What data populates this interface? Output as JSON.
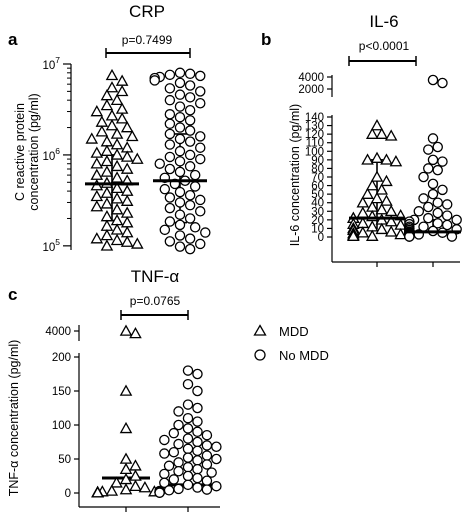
{
  "chart_data": [
    {
      "panel_label": "a",
      "type": "scatter",
      "title": "CRP",
      "ylabel_line1": "C reactive protein",
      "ylabel_line2": "concentration (pg/ml)",
      "yscale": "log",
      "ylim": [
        90000,
        10000000
      ],
      "yticks": [
        {
          "value": 100000,
          "base": "10",
          "exp": "5"
        },
        {
          "value": 1000000,
          "base": "10",
          "exp": "6"
        },
        {
          "value": 10000000,
          "base": "10",
          "exp": "7"
        }
      ],
      "p_value": "p=0.7499",
      "groups": [
        {
          "name": "MDD",
          "marker": "triangle",
          "median": 480000,
          "iqr": [
            190000,
            1000000
          ],
          "points": [
            7500000,
            6500000,
            5500000,
            5000000,
            4500000,
            4000000,
            3500000,
            3200000,
            3000000,
            2700000,
            2500000,
            2300000,
            2100000,
            2000000,
            1800000,
            1700000,
            1600000,
            1500000,
            1400000,
            1300000,
            1200000,
            1100000,
            1050000,
            1000000,
            950000,
            900000,
            850000,
            800000,
            750000,
            700000,
            650000,
            600000,
            560000,
            520000,
            490000,
            460000,
            430000,
            400000,
            380000,
            350000,
            330000,
            310000,
            290000,
            270000,
            250000,
            230000,
            210000,
            190000,
            180000,
            165000,
            150000,
            140000,
            130000,
            120000,
            115000,
            110000,
            105000,
            100000
          ]
        },
        {
          "name": "No MDD",
          "marker": "circle",
          "median": 520000,
          "iqr": [
            180000,
            1700000
          ],
          "points": [
            8000000,
            7800000,
            7600000,
            7400000,
            7200000,
            7000000,
            6600000,
            6200000,
            5800000,
            5400000,
            5000000,
            4600000,
            4300000,
            4000000,
            3700000,
            3400000,
            3100000,
            2800000,
            2600000,
            2400000,
            2200000,
            2000000,
            1850000,
            1700000,
            1600000,
            1500000,
            1400000,
            1300000,
            1200000,
            1100000,
            1000000,
            950000,
            900000,
            850000,
            800000,
            750000,
            700000,
            650000,
            600000,
            560000,
            520000,
            480000,
            450000,
            420000,
            390000,
            360000,
            340000,
            320000,
            300000,
            280000,
            260000,
            240000,
            220000,
            200000,
            185000,
            170000,
            160000,
            150000,
            140000,
            130000,
            120000,
            112000,
            105000,
            98000,
            92000
          ]
        }
      ]
    },
    {
      "panel_label": "b",
      "type": "scatter",
      "title": "IL-6",
      "ylabel": "IL-6 concentration (pg/ml)",
      "ylim": [
        0,
        140
      ],
      "yticks": [
        0,
        10,
        20,
        30,
        40,
        50,
        60,
        70,
        80,
        90,
        100,
        110,
        120,
        130,
        140
      ],
      "yticks_upper": [
        2000,
        4000
      ],
      "axis_break": true,
      "p_value": "p<0.0001",
      "groups": [
        {
          "name": "MDD",
          "marker": "triangle",
          "median": 22,
          "iqr": [
            9,
            90
          ],
          "points": [
            130,
            120,
            120,
            118,
            92,
            90,
            90,
            88,
            70,
            65,
            60,
            55,
            50,
            45,
            42,
            40,
            35,
            32,
            30,
            28,
            25,
            24,
            22,
            22,
            20,
            18,
            16,
            15,
            14,
            12,
            10,
            9,
            8,
            6,
            5,
            4,
            3,
            2,
            1,
            1
          ]
        },
        {
          "name": "No MDD",
          "marker": "circle",
          "median": 6,
          "iqr": [
            2,
            20
          ],
          "points": [
            3500,
            3000,
            115,
            105,
            102,
            90,
            88,
            80,
            78,
            70,
            62,
            55,
            50,
            45,
            40,
            38,
            35,
            30,
            28,
            25,
            22,
            20,
            20,
            18,
            16,
            15,
            14,
            12,
            12,
            10,
            10,
            9,
            8,
            8,
            7,
            6,
            6,
            5,
            5,
            4,
            4,
            3,
            3,
            3,
            2,
            2,
            2,
            1,
            1,
            1,
            1,
            0.5,
            0.5,
            0.5
          ]
        }
      ]
    },
    {
      "panel_label": "c",
      "type": "scatter",
      "title": "TNF-α",
      "ylabel": "TNF-α concentration  (pg/ml)",
      "ylim": [
        0,
        200
      ],
      "yticks": [
        0,
        50,
        100,
        150,
        200
      ],
      "yticks_upper": [
        4000
      ],
      "axis_break": true,
      "p_value": "p=0.0765",
      "groups": [
        {
          "name": "MDD",
          "marker": "triangle",
          "median": 22,
          "points": [
            4000,
            3800,
            150,
            95,
            50,
            40,
            35,
            25,
            20,
            15,
            10,
            8,
            5,
            3,
            2,
            2,
            1,
            1,
            0.5,
            0.5,
            0.5,
            0.5
          ]
        },
        {
          "name": "No MDD",
          "marker": "circle",
          "median": 12,
          "points": [
            180,
            175,
            160,
            150,
            130,
            125,
            120,
            110,
            105,
            100,
            95,
            90,
            88,
            85,
            80,
            78,
            75,
            72,
            70,
            68,
            65,
            62,
            60,
            58,
            55,
            52,
            50,
            48,
            45,
            42,
            40,
            38,
            35,
            32,
            30,
            28,
            25,
            22,
            20,
            18,
            15,
            12,
            10,
            8,
            6,
            5,
            4,
            3,
            2,
            2,
            1,
            1,
            1,
            0.5,
            0.5,
            0.5
          ]
        }
      ]
    }
  ],
  "legend": [
    {
      "marker": "triangle",
      "label": "MDD"
    },
    {
      "marker": "circle",
      "label": "No MDD"
    }
  ]
}
